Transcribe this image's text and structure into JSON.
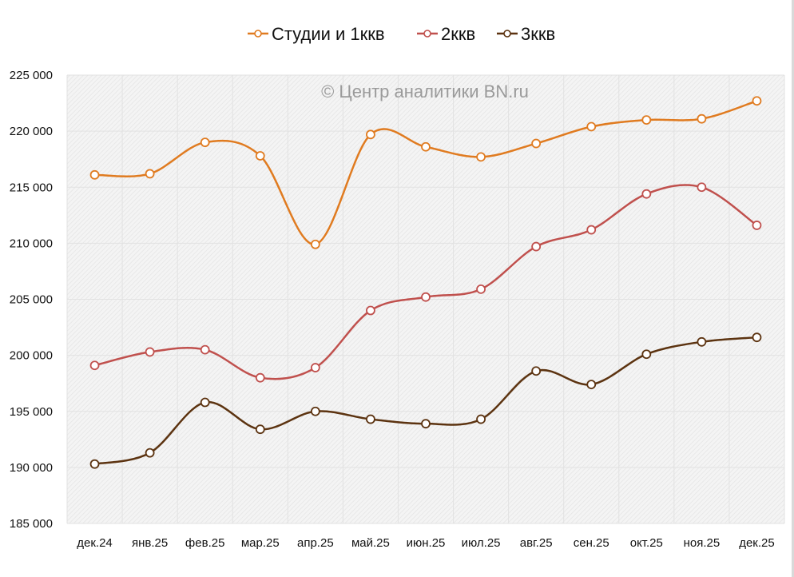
{
  "chart_data": {
    "type": "line",
    "title": "",
    "watermark": "© Центр аналитики BN.ru",
    "xlabel": "",
    "ylabel": "",
    "categories": [
      "дек.24",
      "янв.25",
      "фев.25",
      "мар.25",
      "апр.25",
      "май.25",
      "июн.25",
      "июл.25",
      "авг.25",
      "сен.25",
      "окт.25",
      "ноя.25",
      "дек.25"
    ],
    "ylim": [
      185000,
      225000
    ],
    "yticks": [
      185000,
      190000,
      195000,
      200000,
      205000,
      210000,
      215000,
      220000,
      225000
    ],
    "ytick_labels": [
      "185 000",
      "190 000",
      "195 000",
      "200 000",
      "205 000",
      "210 000",
      "215 000",
      "220 000",
      "225 000"
    ],
    "grid": true,
    "smooth": true,
    "legend_position": "top-center",
    "series": [
      {
        "name": "Студии и 1ккв",
        "color": "#e07b20",
        "values": [
          216100,
          216200,
          219000,
          217800,
          209900,
          219700,
          218600,
          217700,
          218900,
          220400,
          221000,
          221100,
          222700
        ]
      },
      {
        "name": "2ккв",
        "color": "#c0504d",
        "values": [
          199100,
          200300,
          200500,
          198000,
          198900,
          204000,
          205200,
          205900,
          209700,
          211200,
          214400,
          215000,
          211600
        ]
      },
      {
        "name": "3ккв",
        "color": "#5c3310",
        "values": [
          190300,
          191300,
          195800,
          193400,
          195000,
          194300,
          193900,
          194300,
          198600,
          197400,
          200100,
          201200,
          201600
        ]
      }
    ]
  }
}
